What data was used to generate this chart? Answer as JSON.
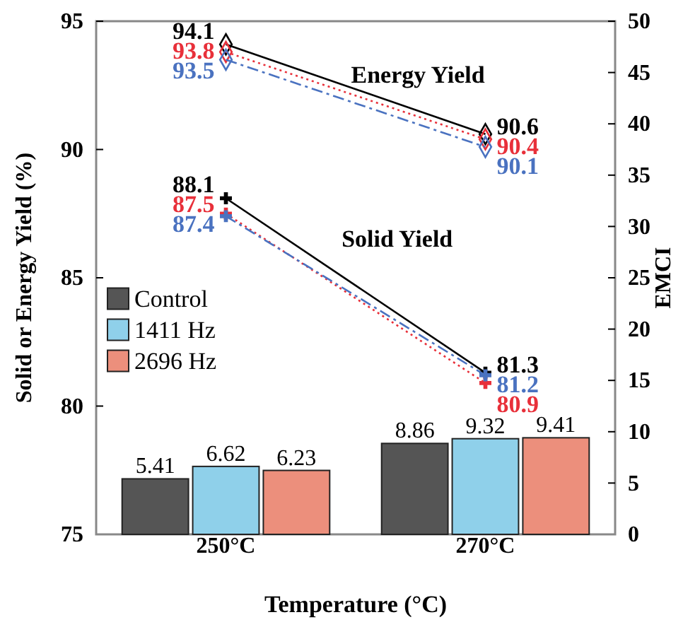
{
  "chart_data": {
    "type": "bar",
    "categories": [
      "250°C",
      "270°C"
    ],
    "xlabel": "Temperature (°C)",
    "ylabel": "Solid or Energy Yield (%)",
    "y2label": "EMCI",
    "ylim": [
      75,
      95
    ],
    "yticks": [
      75,
      80,
      85,
      90,
      95
    ],
    "y2lim": [
      0,
      50
    ],
    "y2ticks": [
      0,
      5,
      10,
      15,
      20,
      25,
      30,
      35,
      40,
      45,
      50
    ],
    "legend": "left",
    "data_labels": true,
    "grid": false,
    "annotations": [
      "Energy Yield",
      "Solid Yield"
    ],
    "series": [
      {
        "name": "Control",
        "axis": "y2",
        "color": "#555555",
        "values": [
          5.41,
          8.86
        ]
      },
      {
        "name": "1411 Hz",
        "axis": "y2",
        "color": "#8fd0ea",
        "values": [
          6.62,
          9.32
        ]
      },
      {
        "name": "2696 Hz",
        "axis": "y2",
        "color": "#ec8f7c",
        "values": [
          6.23,
          9.41
        ]
      },
      {
        "type": "line",
        "color": "#000000",
        "marker": "diamond",
        "line_style": "solid",
        "values": [
          94.1,
          90.6
        ]
      },
      {
        "type": "line",
        "color": "#e8303a",
        "marker": "diamond",
        "line_style": "dotted",
        "values": [
          93.8,
          90.4
        ]
      },
      {
        "type": "line",
        "color": "#4a72c0",
        "marker": "diamond",
        "line_style": "dashdot",
        "values": [
          93.5,
          90.1
        ]
      },
      {
        "type": "line",
        "color": "#000000",
        "marker": "cross",
        "line_style": "solid",
        "values": [
          88.1,
          81.3
        ]
      },
      {
        "type": "line",
        "color": "#e8303a",
        "marker": "cross",
        "line_style": "dotted",
        "values": [
          87.5,
          80.9
        ]
      },
      {
        "type": "line",
        "color": "#4a72c0",
        "marker": "cross",
        "line_style": "dashdot",
        "values": [
          87.4,
          81.2
        ]
      }
    ]
  }
}
